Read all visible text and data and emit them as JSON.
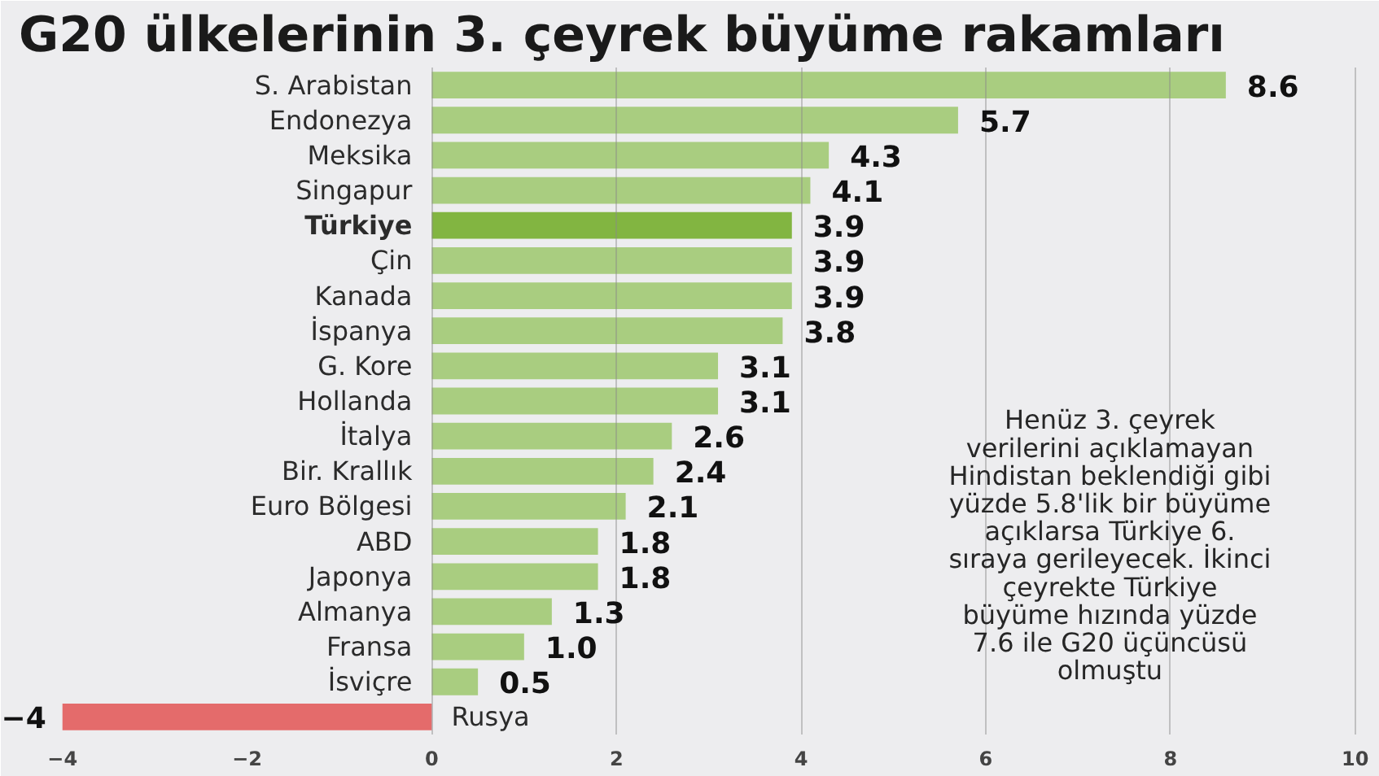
{
  "chart_data": {
    "type": "bar",
    "orientation": "horizontal",
    "title": "G20 ülkelerinin 3. çeyrek büyüme rakamları",
    "categories": [
      "S. Arabistan",
      "Endonezya",
      "Meksika",
      "Singapur",
      "Türkiye",
      "Çin",
      "Kanada",
      "İspanya",
      "G. Kore",
      "Hollanda",
      "İtalya",
      "Bir. Krallık",
      "Euro Bölgesi",
      "ABD",
      "Japonya",
      "Almanya",
      "Fransa",
      "İsviçre",
      "Rusya"
    ],
    "values": [
      8.6,
      5.7,
      4.3,
      4.1,
      3.9,
      3.9,
      3.9,
      3.8,
      3.1,
      3.1,
      2.6,
      2.4,
      2.1,
      1.8,
      1.8,
      1.3,
      1.0,
      0.5,
      -4
    ],
    "colors": [
      "#a9cd80",
      "#a9cd80",
      "#a9cd80",
      "#a9cd80",
      "#82b541",
      "#a9cd80",
      "#a9cd80",
      "#a9cd80",
      "#a9cd80",
      "#a9cd80",
      "#a9cd80",
      "#a9cd80",
      "#a9cd80",
      "#a9cd80",
      "#a9cd80",
      "#a9cd80",
      "#a9cd80",
      "#a9cd80",
      "#e46b6b"
    ],
    "value_labels": [
      "8.6",
      "5.7",
      "4.3",
      "4.1",
      "3.9",
      "3.9",
      "3.9",
      "3.8",
      "3.1",
      "3.1",
      "2.6",
      "2.4",
      "2.1",
      "1.8",
      "1.8",
      "1.3",
      "1.0",
      "0.5",
      "−4"
    ],
    "xlim": [
      -4.65,
      10.25
    ],
    "xticks": [
      {
        "value": -4,
        "label": "−4"
      },
      {
        "value": -2,
        "label": "−2"
      },
      0,
      2,
      4,
      6,
      8,
      10
    ],
    "grid": "x",
    "annotations": [
      "Henüz 3. çeyrek\nverilerini açıklamayan\nHindistan beklendiği gibi\nyüzde 5.8'lik bir büyüme\naçıklarsa Türkiye 6.\nsıraya gerileyecek. İkinci\nçeyrekte Türkiye\nbüyüme hızında yüzde\n7.6 ile G20 üçüncüsü\nolmuştu"
    ]
  }
}
